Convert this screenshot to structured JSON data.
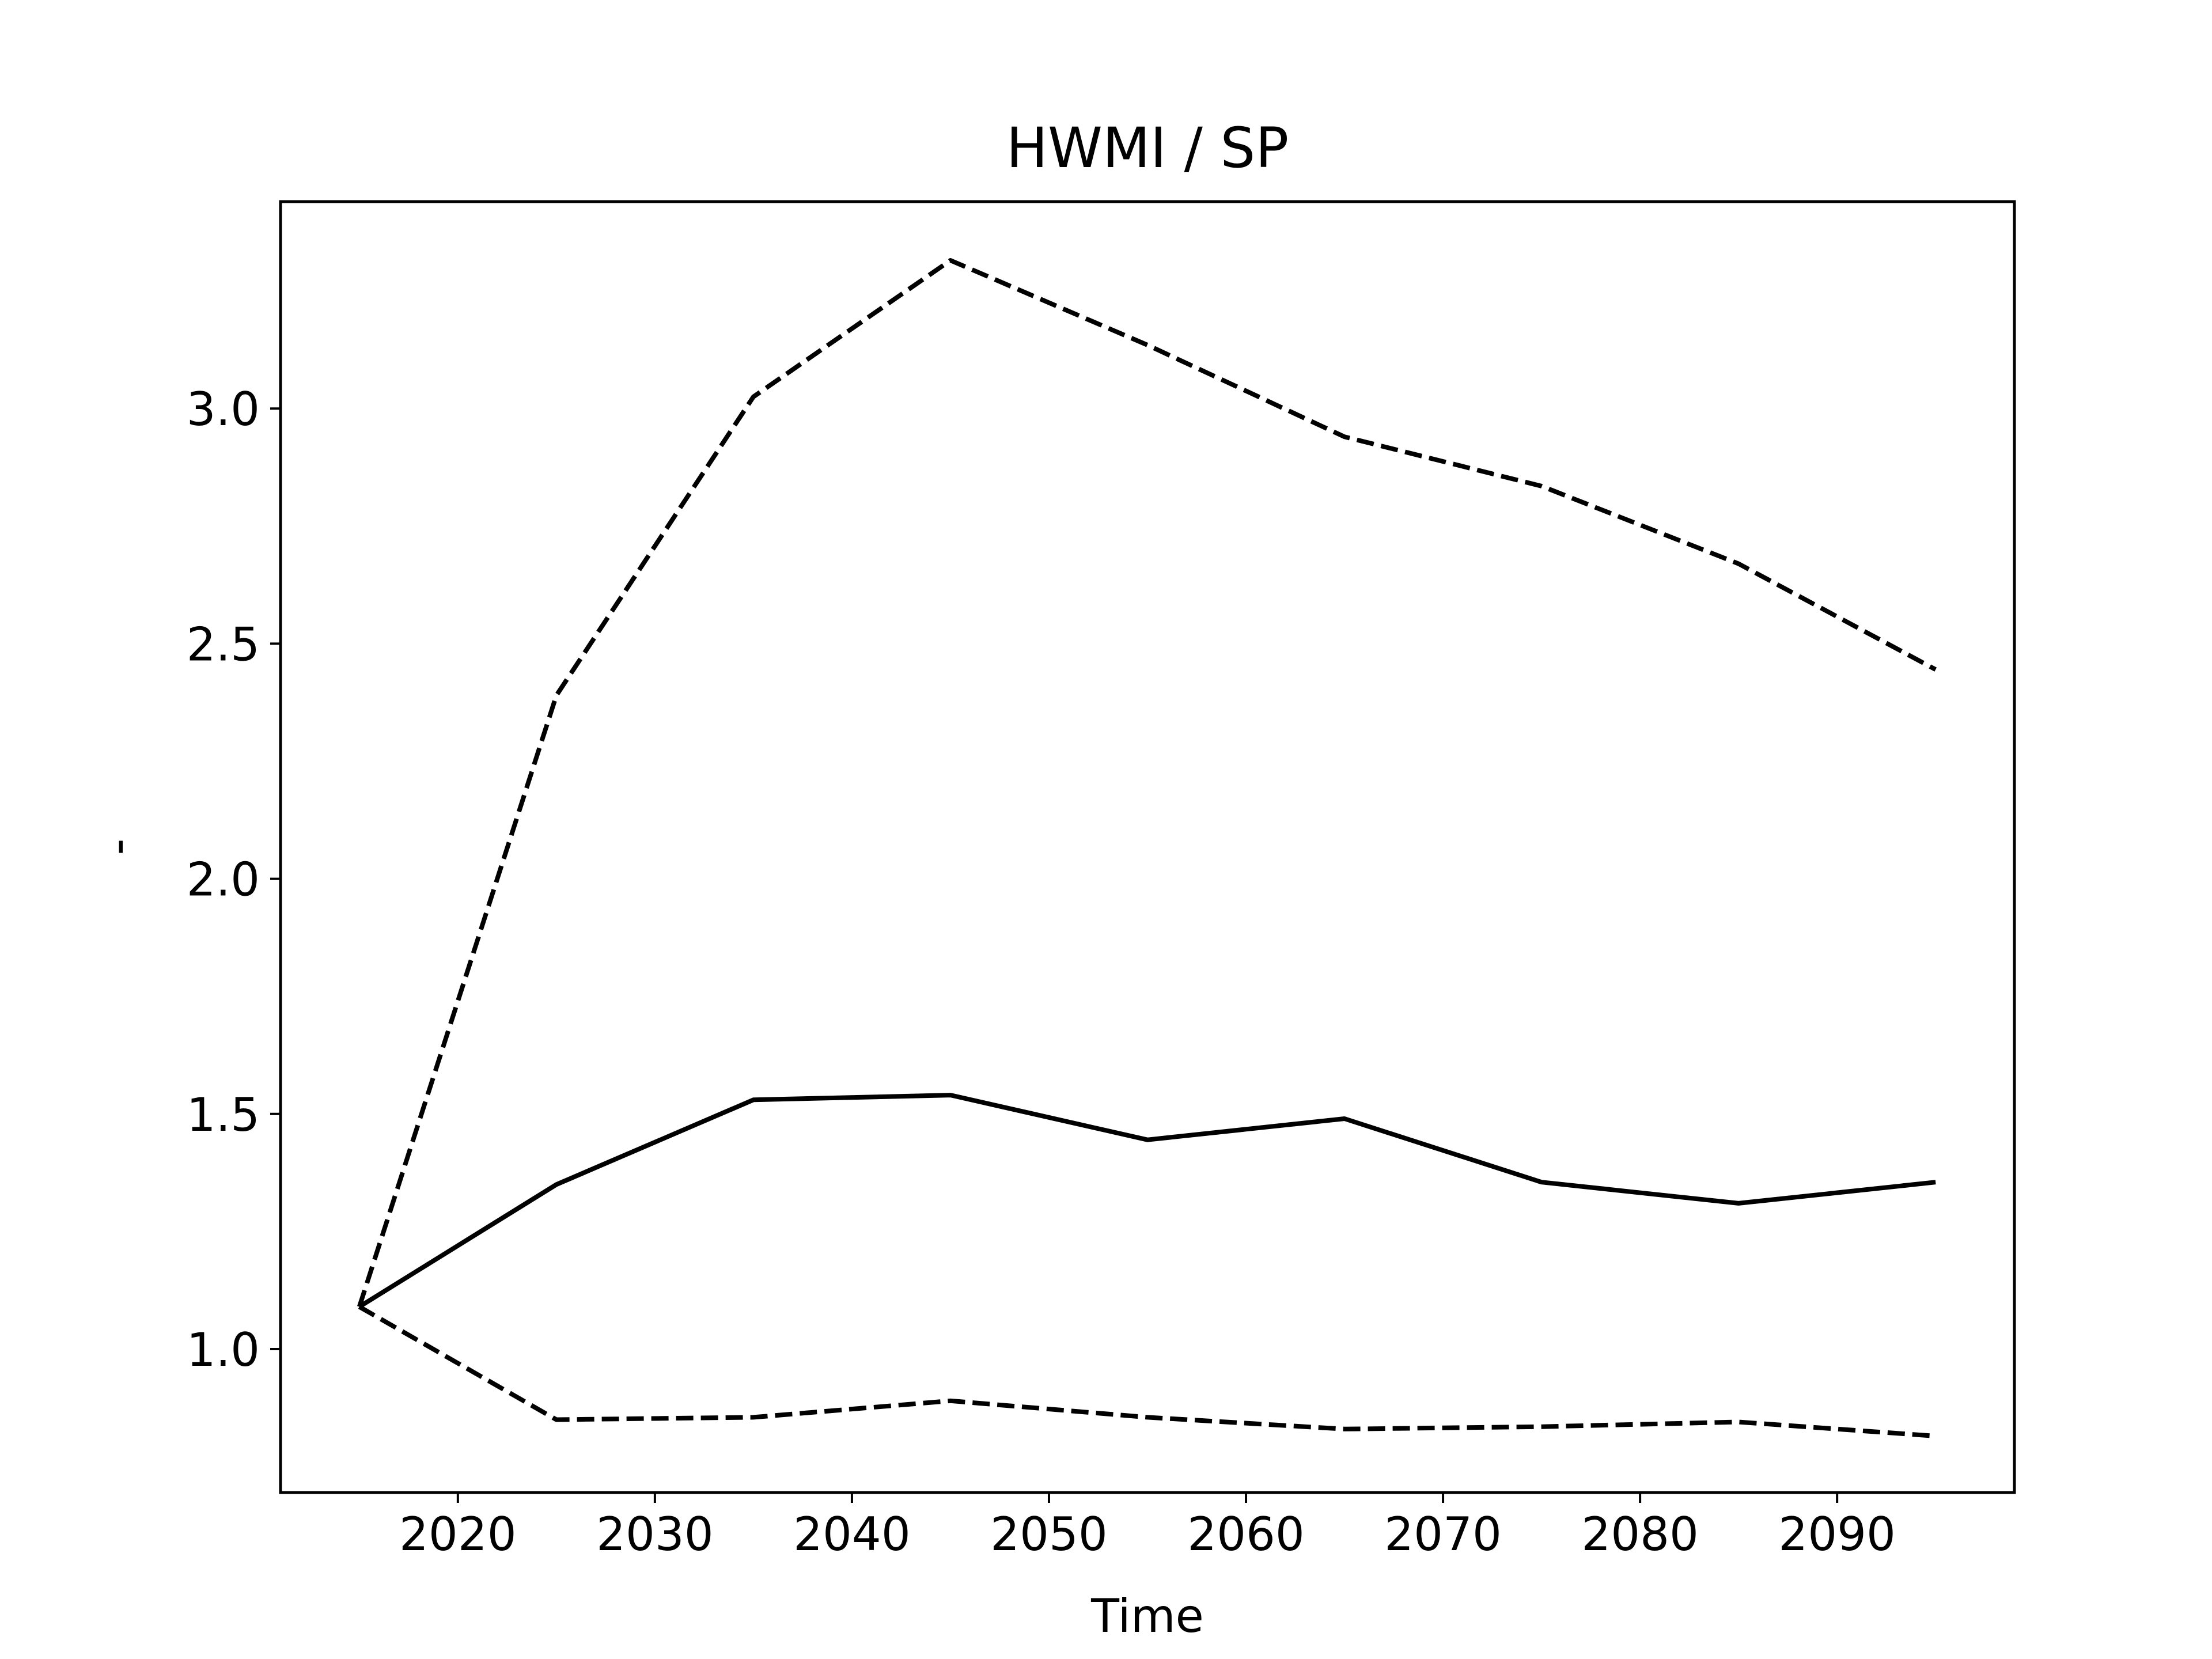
{
  "chart_data": {
    "type": "line",
    "title": "HWMI / SP",
    "xlabel": "Time",
    "ylabel": "-",
    "xlim": [
      2011,
      2099
    ],
    "ylim": [
      0.695,
      3.44
    ],
    "xticks": [
      2020,
      2030,
      2040,
      2050,
      2060,
      2070,
      2080,
      2090
    ],
    "yticks": [
      1.0,
      1.5,
      2.0,
      2.5,
      3.0
    ],
    "ytick_labels": [
      "1.0",
      "1.5",
      "2.0",
      "2.5",
      "3.0"
    ],
    "grid": false,
    "x": [
      2015,
      2025,
      2035,
      2045,
      2055,
      2065,
      2075,
      2085,
      2095
    ],
    "series": [
      {
        "style": "solid",
        "color": "#000000",
        "values": [
          1.09,
          1.35,
          1.53,
          1.54,
          1.445,
          1.49,
          1.355,
          1.31,
          1.355
        ]
      },
      {
        "style": "dashed",
        "color": "#000000",
        "values": [
          1.09,
          2.39,
          3.025,
          3.315,
          3.135,
          2.94,
          2.835,
          2.67,
          2.445
        ]
      },
      {
        "style": "dashed",
        "color": "#000000",
        "values": [
          1.09,
          0.85,
          0.855,
          0.89,
          0.855,
          0.83,
          0.835,
          0.845,
          0.815
        ]
      }
    ]
  }
}
